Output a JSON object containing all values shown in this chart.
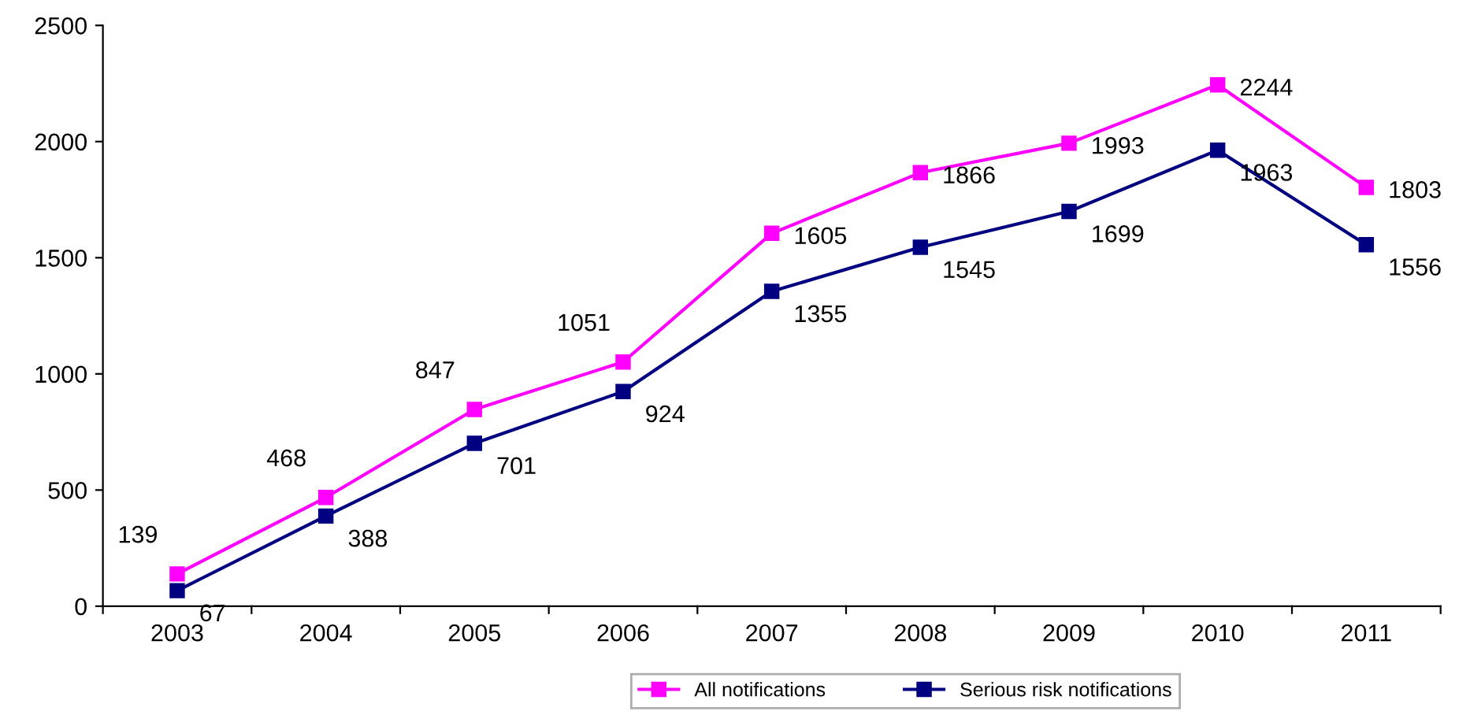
{
  "chart_data": {
    "type": "line",
    "categories": [
      "2003",
      "2004",
      "2005",
      "2006",
      "2007",
      "2008",
      "2009",
      "2010",
      "2011"
    ],
    "series": [
      {
        "name": "All notifications",
        "color": "#ff00ff",
        "values": [
          139,
          468,
          847,
          1051,
          1605,
          1866,
          1993,
          2244,
          1803
        ]
      },
      {
        "name": "Serious risk notifications",
        "color": "#000080",
        "values": [
          67,
          388,
          701,
          924,
          1355,
          1545,
          1699,
          1963,
          1556
        ]
      }
    ],
    "ylim": [
      0,
      2500
    ],
    "yticks": [
      0,
      500,
      1000,
      1500,
      2000,
      2500
    ],
    "grid": false,
    "legend": "bottom",
    "marker": "square",
    "line_style": "solid",
    "data_labels": true
  }
}
